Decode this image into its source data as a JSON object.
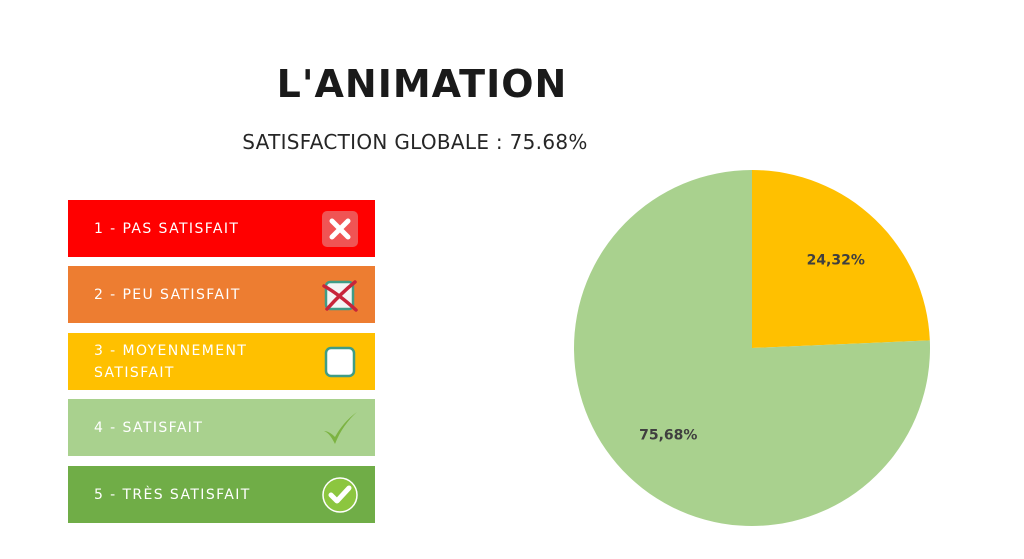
{
  "title": "L'ANIMATION",
  "subtitle": "SATISFACTION GLOBALE : 75.68%",
  "legend": [
    {
      "label": "1 - PAS SATISFAIT",
      "color": "#ff0000",
      "icon": "x-mark-icon"
    },
    {
      "label": "2 - PEU SATISFAIT",
      "color": "#ed7d31",
      "icon": "crossed-checkbox-icon"
    },
    {
      "label": "3 - MOYENNEMENT SATISFAIT",
      "color": "#ffc000",
      "icon": "empty-checkbox-icon"
    },
    {
      "label": "4 - SATISFAIT",
      "color": "#a9d18e",
      "icon": "checkmark-icon"
    },
    {
      "label": "5 - TRÈS SATISFAIT",
      "color": "#70ad47",
      "icon": "check-circle-icon"
    }
  ],
  "chart_data": {
    "type": "pie",
    "title": "",
    "slices": [
      {
        "label": "24,32%",
        "value": 24.32,
        "color": "#ffc000"
      },
      {
        "label": "75,68%",
        "value": 75.68,
        "color": "#a9d18e"
      }
    ],
    "start_angle_deg": 0,
    "direction": "clockwise",
    "legend": "left"
  }
}
